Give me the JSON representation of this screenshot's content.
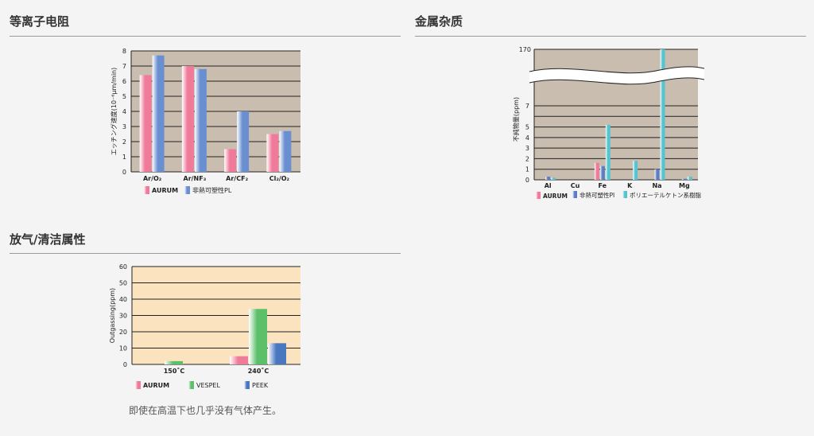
{
  "sections": {
    "plasma": {
      "title": "等离子电阻"
    },
    "metal": {
      "title": "金属杂质"
    },
    "outgas": {
      "title": "放气/清洁属性",
      "note": "即使在高温下也几乎没有气体产生。"
    }
  },
  "chart_data": [
    {
      "type": "bar",
      "ylabel": "エッチング速度(10⁻⁶µm/min)",
      "ylim": [
        0,
        8
      ],
      "yticks": [
        "0",
        "1",
        "2",
        "3",
        "4",
        "5",
        "6",
        "7",
        "8"
      ],
      "categories": [
        "Ar/O₂",
        "Ar/NF₃",
        "Ar/CF₂",
        "Cl₂/O₂"
      ],
      "series": [
        {
          "name": "AURUM",
          "values": [
            6.4,
            7.0,
            1.5,
            2.5
          ],
          "color": "#f07a9a"
        },
        {
          "name": "非熱可塑性PL",
          "values": [
            7.7,
            6.8,
            4.0,
            2.7
          ],
          "color": "#6a8fd0"
        }
      ],
      "background": "#c9bdb0"
    },
    {
      "type": "bar",
      "ylabel": "不純物量(ppm)",
      "ylim": [
        0,
        7
      ],
      "axis_break": true,
      "yticks": [
        "0",
        "1",
        "2",
        "3",
        "4",
        "5",
        "7",
        "170"
      ],
      "categories": [
        "Al",
        "Cu",
        "Fe",
        "K",
        "Na",
        "Mg"
      ],
      "series": [
        {
          "name": "AURUM",
          "values": [
            0,
            0,
            1.6,
            0,
            0,
            0
          ],
          "color": "#f07a9a"
        },
        {
          "name": "非熱可塑性PI",
          "values": [
            0.3,
            0,
            1.3,
            0,
            1.0,
            0.1
          ],
          "color": "#5a7dc4"
        },
        {
          "name": "ポリエーテルケトン系樹脂",
          "values": [
            0.2,
            0,
            5.2,
            1.8,
            170,
            0.3
          ],
          "color": "#55c4d0"
        }
      ],
      "background": "#c9bdb0"
    },
    {
      "type": "bar",
      "ylabel": "Outgassing(ppm)",
      "ylim": [
        0,
        60
      ],
      "yticks": [
        "0",
        "10",
        "20",
        "30",
        "40",
        "50",
        "60"
      ],
      "categories": [
        "150˚C",
        "240˚C"
      ],
      "series": [
        {
          "name": "AURUM",
          "values": [
            0,
            5
          ],
          "color": "#f07a9a"
        },
        {
          "name": "VESPEL",
          "values": [
            2,
            34
          ],
          "color": "#5cbf6a"
        },
        {
          "name": "PEEK",
          "values": [
            0,
            13
          ],
          "color": "#4a78c0"
        }
      ],
      "background": "#fbe3bf"
    }
  ]
}
